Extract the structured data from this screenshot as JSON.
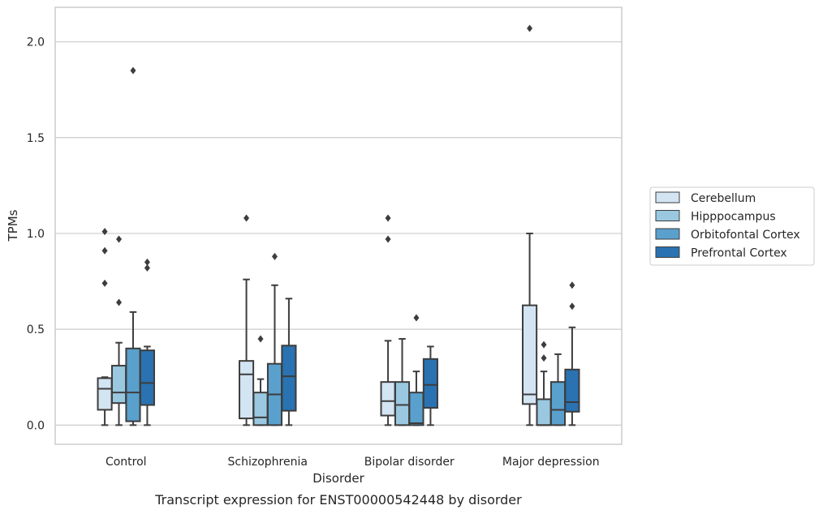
{
  "caption": "Transcript expression for ENST00000542448 by disorder",
  "chart_data": {
    "type": "box",
    "xlabel": "Disorder",
    "ylabel": "TPMs",
    "ylim": [
      -0.1,
      2.18
    ],
    "yticks": [
      0.0,
      0.5,
      1.0,
      1.5,
      2.0
    ],
    "ytick_labels": [
      "0.0",
      "0.5",
      "1.0",
      "1.5",
      "2.0"
    ],
    "grid": "horizontal",
    "legend_placement": "right, outside plot",
    "categories": [
      "Control",
      "Schizophrenia",
      "Bipolar disorder",
      "Major depression"
    ],
    "series": [
      {
        "name": "Cerebellum",
        "color": "#d3e4f3",
        "boxes": [
          {
            "whislo": 0.0,
            "q1": 0.08,
            "median": 0.19,
            "q3": 0.245,
            "whishi": 0.25,
            "fliers": [
              0.74,
              0.91,
              1.01
            ]
          },
          {
            "whislo": 0.0,
            "q1": 0.035,
            "median": 0.265,
            "q3": 0.335,
            "whishi": 0.76,
            "fliers": [
              1.08
            ]
          },
          {
            "whislo": 0.0,
            "q1": 0.05,
            "median": 0.125,
            "q3": 0.225,
            "whishi": 0.44,
            "fliers": [
              0.97,
              1.08
            ]
          },
          {
            "whislo": 0.0,
            "q1": 0.11,
            "median": 0.16,
            "q3": 0.625,
            "whishi": 1.0,
            "fliers": [
              2.07
            ]
          }
        ]
      },
      {
        "name": "Hipppocampus",
        "color": "#9ac8e0",
        "boxes": [
          {
            "whislo": 0.0,
            "q1": 0.115,
            "median": 0.17,
            "q3": 0.31,
            "whishi": 0.43,
            "fliers": [
              0.64,
              0.97
            ]
          },
          {
            "whislo": 0.0,
            "q1": 0.0,
            "median": 0.04,
            "q3": 0.17,
            "whishi": 0.24,
            "fliers": [
              0.45
            ]
          },
          {
            "whislo": 0.0,
            "q1": 0.0,
            "median": 0.105,
            "q3": 0.225,
            "whishi": 0.45,
            "fliers": []
          },
          {
            "whislo": 0.0,
            "q1": 0.0,
            "median": 0.0,
            "q3": 0.135,
            "whishi": 0.28,
            "fliers": [
              0.35,
              0.42
            ]
          }
        ]
      },
      {
        "name": "Orbitofontal Cortex",
        "color": "#5aa0cd",
        "boxes": [
          {
            "whislo": 0.0,
            "q1": 0.02,
            "median": 0.17,
            "q3": 0.4,
            "whishi": 0.59,
            "fliers": [
              1.85
            ]
          },
          {
            "whislo": 0.0,
            "q1": 0.0,
            "median": 0.16,
            "q3": 0.32,
            "whishi": 0.73,
            "fliers": [
              0.88
            ]
          },
          {
            "whislo": 0.0,
            "q1": 0.0,
            "median": 0.01,
            "q3": 0.17,
            "whishi": 0.28,
            "fliers": [
              0.56
            ]
          },
          {
            "whislo": 0.0,
            "q1": 0.0,
            "median": 0.08,
            "q3": 0.225,
            "whishi": 0.37,
            "fliers": []
          }
        ]
      },
      {
        "name": "Prefrontal Cortex",
        "color": "#2a72b1",
        "boxes": [
          {
            "whislo": 0.0,
            "q1": 0.105,
            "median": 0.22,
            "q3": 0.39,
            "whishi": 0.41,
            "fliers": [
              0.82,
              0.85
            ]
          },
          {
            "whislo": 0.0,
            "q1": 0.075,
            "median": 0.255,
            "q3": 0.415,
            "whishi": 0.66,
            "fliers": []
          },
          {
            "whislo": 0.0,
            "q1": 0.09,
            "median": 0.21,
            "q3": 0.345,
            "whishi": 0.41,
            "fliers": []
          },
          {
            "whislo": 0.0,
            "q1": 0.07,
            "median": 0.12,
            "q3": 0.29,
            "whishi": 0.51,
            "fliers": [
              0.62,
              0.73
            ]
          }
        ]
      }
    ]
  }
}
